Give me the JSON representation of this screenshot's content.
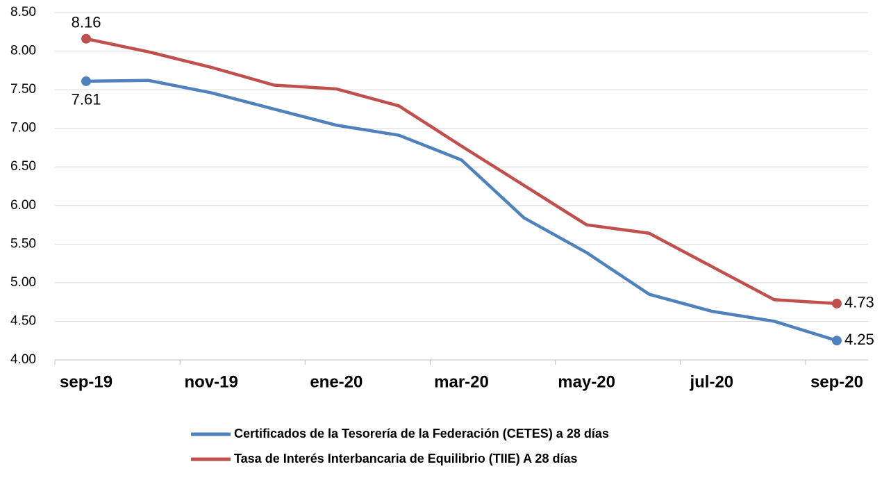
{
  "chart_data": {
    "type": "line",
    "categories": [
      "sep-19",
      null,
      "nov-19",
      null,
      "ene-20",
      null,
      "mar-20",
      null,
      "may-20",
      null,
      "jul-20",
      null,
      "sep-20"
    ],
    "series": [
      {
        "name": "Certificados de la Tesorería de la Federación (CETES) a 28 días",
        "color": "#4f81bd",
        "values": [
          7.61,
          7.62,
          7.46,
          7.25,
          7.04,
          6.91,
          6.59,
          5.84,
          5.39,
          4.85,
          4.63,
          4.5,
          4.25
        ],
        "value_labels": [
          "7.61",
          null,
          null,
          null,
          null,
          null,
          null,
          null,
          null,
          null,
          null,
          null,
          "4.25"
        ]
      },
      {
        "name": "Tasa de Interés Interbancaria de Equilibrio (TIIE) A 28 días",
        "color": "#c0504d",
        "values": [
          8.16,
          7.99,
          7.79,
          7.56,
          7.51,
          7.29,
          6.77,
          6.26,
          5.75,
          5.64,
          5.21,
          4.78,
          4.73
        ],
        "value_labels": [
          "8.16",
          null,
          null,
          null,
          null,
          null,
          null,
          null,
          null,
          null,
          null,
          null,
          "4.73"
        ]
      }
    ],
    "ylim": [
      4.0,
      8.5
    ],
    "yticks": [
      {
        "value": 4.0,
        "label": "4.00"
      },
      {
        "value": 4.5,
        "label": "4.50"
      },
      {
        "value": 5.0,
        "label": "5.00"
      },
      {
        "value": 5.5,
        "label": "5.50"
      },
      {
        "value": 6.0,
        "label": "6.00"
      },
      {
        "value": 6.5,
        "label": "6.50"
      },
      {
        "value": 7.0,
        "label": "7.00"
      },
      {
        "value": 7.5,
        "label": "7.50"
      },
      {
        "value": 8.0,
        "label": "8.00"
      },
      {
        "value": 8.5,
        "label": "8.50"
      }
    ],
    "grid": true,
    "legend": "bottom"
  }
}
